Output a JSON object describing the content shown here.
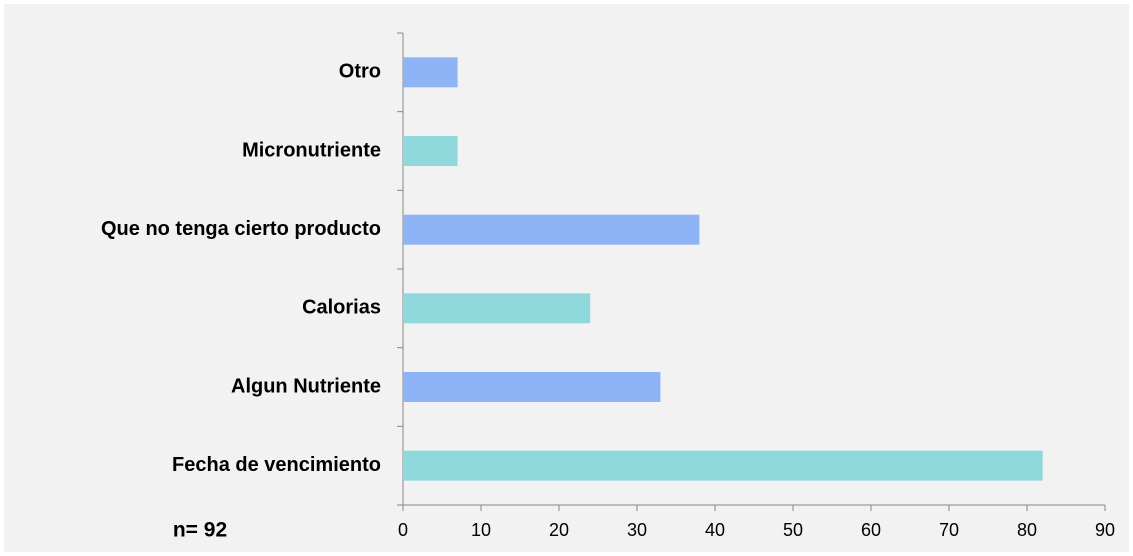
{
  "chart_data": {
    "type": "bar",
    "orientation": "horizontal",
    "annotation": "n= 92",
    "categories": [
      "Otro",
      "Micronutriente",
      "Que no tenga cierto producto",
      "Calorias",
      "Algun Nutriente",
      "Fecha de vencimiento"
    ],
    "values": [
      7,
      7,
      38,
      24,
      33,
      82
    ],
    "colors": [
      "#8fb4f5",
      "#8fd8dc",
      "#8fb4f5",
      "#8fd8dc",
      "#8fb4f5",
      "#8fd8dc"
    ],
    "xlim": [
      0,
      90
    ],
    "xticks": [
      0,
      10,
      20,
      30,
      40,
      50,
      60,
      70,
      80,
      90
    ]
  }
}
